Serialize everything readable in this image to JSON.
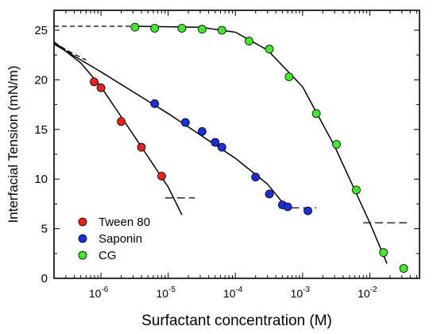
{
  "chart_data": {
    "type": "scatter",
    "title": "",
    "xlabel": "Surfactant concentration (M)",
    "ylabel": "Interfacial Tension (mN/m)",
    "xscale": "log",
    "xlim": [
      2e-07,
      0.055
    ],
    "ylim": [
      0,
      27
    ],
    "x_ticks": [
      {
        "value": 1e-06,
        "base": "10",
        "exp": "-6"
      },
      {
        "value": 1e-05,
        "base": "10",
        "exp": "-5"
      },
      {
        "value": 0.0001,
        "base": "10",
        "exp": "-4"
      },
      {
        "value": 0.001,
        "base": "10",
        "exp": "-3"
      },
      {
        "value": 0.01,
        "base": "10",
        "exp": "-2"
      }
    ],
    "y_ticks": [
      0,
      5,
      10,
      15,
      20,
      25
    ],
    "grid": false,
    "legend_position": "bottom-left",
    "series": [
      {
        "name": "Tween 80",
        "color": "#e8231e",
        "x": [
          7.9e-07,
          1e-06,
          2e-06,
          4e-06,
          8e-06
        ],
        "y": [
          19.8,
          19.2,
          15.8,
          13.2,
          10.3
        ],
        "fit": [
          [
            2e-07,
            23.8
          ],
          [
            5e-07,
            21.7
          ],
          [
            1e-06,
            19.3
          ],
          [
            3e-06,
            14.5
          ],
          [
            1e-05,
            9.2
          ],
          [
            1.6e-05,
            6.4
          ]
        ],
        "fit_extrapolated": [
          [
            2e-07,
            23.8
          ],
          [
            4e-07,
            22.5
          ]
        ],
        "cmc_line": {
          "x": [
            9e-06,
            2.5e-05
          ],
          "y": 8.1
        }
      },
      {
        "name": "Saponin",
        "color": "#1a2fd6",
        "x": [
          6.3e-06,
          1.8e-05,
          3.2e-05,
          5e-05,
          6.3e-05,
          0.0002,
          0.00032,
          0.0005,
          0.0006,
          0.0012
        ],
        "y": [
          17.6,
          15.7,
          14.8,
          13.7,
          13.2,
          10.2,
          8.5,
          7.4,
          7.2,
          6.8
        ],
        "fit": [
          [
            2e-07,
            23.6
          ],
          [
            1e-06,
            20.8
          ],
          [
            1e-05,
            16.6
          ],
          [
            0.0001,
            12.1
          ],
          [
            0.0003,
            9.5
          ],
          [
            0.0006,
            7.0
          ]
        ],
        "fit_extrapolated": [
          [
            2e-07,
            23.6
          ],
          [
            6e-07,
            22.0
          ]
        ],
        "cmc_line": {
          "x": [
            0.00045,
            0.0016
          ],
          "y": 7.1
        }
      },
      {
        "name": "CG",
        "color": "#45e62e",
        "x": [
          3.2e-06,
          6.3e-06,
          1.6e-05,
          3.2e-05,
          6.3e-05,
          0.00016,
          0.00032,
          0.00063,
          0.0016,
          0.0032,
          0.0063,
          0.016,
          0.032
        ],
        "y": [
          25.3,
          25.2,
          25.2,
          25.1,
          25.0,
          23.9,
          23.1,
          20.3,
          16.6,
          13.5,
          8.9,
          2.6,
          1.0
        ],
        "fit": [
          [
            3e-06,
            25.4
          ],
          [
            3e-05,
            25.3
          ],
          [
            0.0001,
            24.8
          ],
          [
            0.0003,
            23.0
          ],
          [
            0.001,
            19.3
          ],
          [
            0.003,
            13.3
          ],
          [
            0.01,
            5.6
          ],
          [
            0.018,
            1.5
          ]
        ],
        "fit_extrapolated": [
          [
            2e-07,
            25.4
          ],
          [
            3e-06,
            25.4
          ]
        ],
        "cmc_line": {
          "x": [
            0.008,
            0.04
          ],
          "y": 5.6
        }
      }
    ]
  }
}
